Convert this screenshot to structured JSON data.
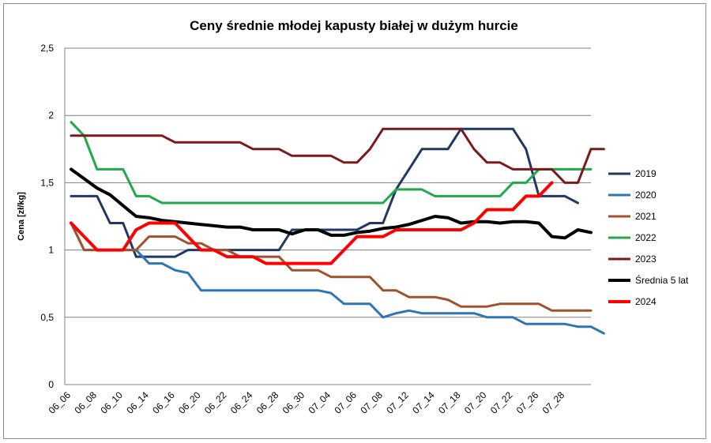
{
  "chart_data": {
    "type": "line",
    "title": "Ceny średnie młodej kapusty białej w dużym hurcie",
    "xlabel": "",
    "ylabel": "Cena [zł/kg]",
    "ylim": [
      0,
      2.5
    ],
    "yticks": [
      "0",
      "0,5",
      "1",
      "1,5",
      "2",
      "2,5"
    ],
    "ytick_values": [
      0,
      0.5,
      1,
      1.5,
      2,
      2.5
    ],
    "grid": "horizontal",
    "legend_position": "right",
    "x_tick_labels": [
      "06_06",
      "06_08",
      "06_10",
      "06_14",
      "06_16",
      "06_20",
      "06_22",
      "06_24",
      "06_28",
      "06_30",
      "07_04",
      "07_06",
      "07_08",
      "07_12",
      "07_14",
      "07_18",
      "07_20",
      "07_22",
      "07_26",
      "07_28"
    ],
    "series": [
      {
        "name": "2019",
        "color": "#1f3864",
        "width": 3,
        "values": [
          1.4,
          1.4,
          1.4,
          1.2,
          1.2,
          0.95,
          0.95,
          0.95,
          0.95,
          1.0,
          1.0,
          1.0,
          1.0,
          1.0,
          1.0,
          1.0,
          1.0,
          1.15,
          1.15,
          1.15,
          1.15,
          1.15,
          1.15,
          1.2,
          1.2,
          1.45,
          1.6,
          1.75,
          1.75,
          1.75,
          1.9,
          1.9,
          1.9,
          1.9,
          1.9,
          1.75,
          1.4,
          1.4,
          1.4,
          1.35
        ]
      },
      {
        "name": "2020",
        "color": "#2e75b6",
        "width": 3,
        "values": [
          1.2,
          1.0,
          1.0,
          1.0,
          1.0,
          1.0,
          0.9,
          0.9,
          0.85,
          0.83,
          0.7,
          0.7,
          0.7,
          0.7,
          0.7,
          0.7,
          0.7,
          0.7,
          0.7,
          0.7,
          0.68,
          0.6,
          0.6,
          0.6,
          0.5,
          0.53,
          0.55,
          0.53,
          0.53,
          0.53,
          0.53,
          0.53,
          0.5,
          0.5,
          0.5,
          0.45,
          0.45,
          0.45,
          0.45,
          0.43,
          0.43,
          0.38
        ]
      },
      {
        "name": "2021",
        "color": "#a0522d",
        "width": 3,
        "values": [
          1.2,
          1.0,
          1.0,
          1.0,
          1.0,
          1.0,
          1.1,
          1.1,
          1.1,
          1.05,
          1.05,
          1.0,
          1.0,
          0.95,
          0.95,
          0.95,
          0.95,
          0.85,
          0.85,
          0.85,
          0.8,
          0.8,
          0.8,
          0.8,
          0.7,
          0.7,
          0.65,
          0.65,
          0.65,
          0.63,
          0.58,
          0.58,
          0.58,
          0.6,
          0.6,
          0.6,
          0.6,
          0.55,
          0.55,
          0.55,
          0.55
        ]
      },
      {
        "name": "2022",
        "color": "#21a84b",
        "width": 3,
        "values": [
          1.95,
          1.85,
          1.6,
          1.6,
          1.6,
          1.4,
          1.4,
          1.35,
          1.35,
          1.35,
          1.35,
          1.35,
          1.35,
          1.35,
          1.35,
          1.35,
          1.35,
          1.35,
          1.35,
          1.35,
          1.35,
          1.35,
          1.35,
          1.35,
          1.35,
          1.45,
          1.45,
          1.45,
          1.4,
          1.4,
          1.4,
          1.4,
          1.4,
          1.4,
          1.5,
          1.5,
          1.6,
          1.6,
          1.6,
          1.6,
          1.6
        ]
      },
      {
        "name": "2023",
        "color": "#7b1a1a",
        "width": 3,
        "values": [
          1.85,
          1.85,
          1.85,
          1.85,
          1.85,
          1.85,
          1.85,
          1.85,
          1.8,
          1.8,
          1.8,
          1.8,
          1.8,
          1.8,
          1.75,
          1.75,
          1.75,
          1.7,
          1.7,
          1.7,
          1.7,
          1.65,
          1.65,
          1.75,
          1.9,
          1.9,
          1.9,
          1.9,
          1.9,
          1.9,
          1.9,
          1.75,
          1.65,
          1.65,
          1.6,
          1.6,
          1.6,
          1.6,
          1.5,
          1.5,
          1.75,
          1.75
        ]
      },
      {
        "name": "Średnia 5 lat",
        "color": "#000000",
        "width": 4,
        "values": [
          1.6,
          1.53,
          1.46,
          1.41,
          1.33,
          1.25,
          1.24,
          1.22,
          1.21,
          1.2,
          1.19,
          1.18,
          1.17,
          1.17,
          1.15,
          1.15,
          1.15,
          1.12,
          1.15,
          1.15,
          1.11,
          1.11,
          1.13,
          1.14,
          1.16,
          1.17,
          1.19,
          1.22,
          1.25,
          1.24,
          1.2,
          1.21,
          1.21,
          1.2,
          1.21,
          1.21,
          1.2,
          1.1,
          1.09,
          1.15,
          1.13
        ]
      },
      {
        "name": "2024",
        "color": "#ff0000",
        "width": 4,
        "values": [
          1.2,
          1.1,
          1.0,
          1.0,
          1.0,
          1.15,
          1.2,
          1.2,
          1.2,
          1.1,
          1.0,
          1.0,
          0.95,
          0.95,
          0.95,
          0.9,
          0.9,
          0.9,
          0.9,
          0.9,
          0.9,
          1.0,
          1.1,
          1.1,
          1.1,
          1.15,
          1.15,
          1.15,
          1.15,
          1.15,
          1.15,
          1.2,
          1.3,
          1.3,
          1.3,
          1.4,
          1.4,
          1.5
        ]
      }
    ]
  }
}
